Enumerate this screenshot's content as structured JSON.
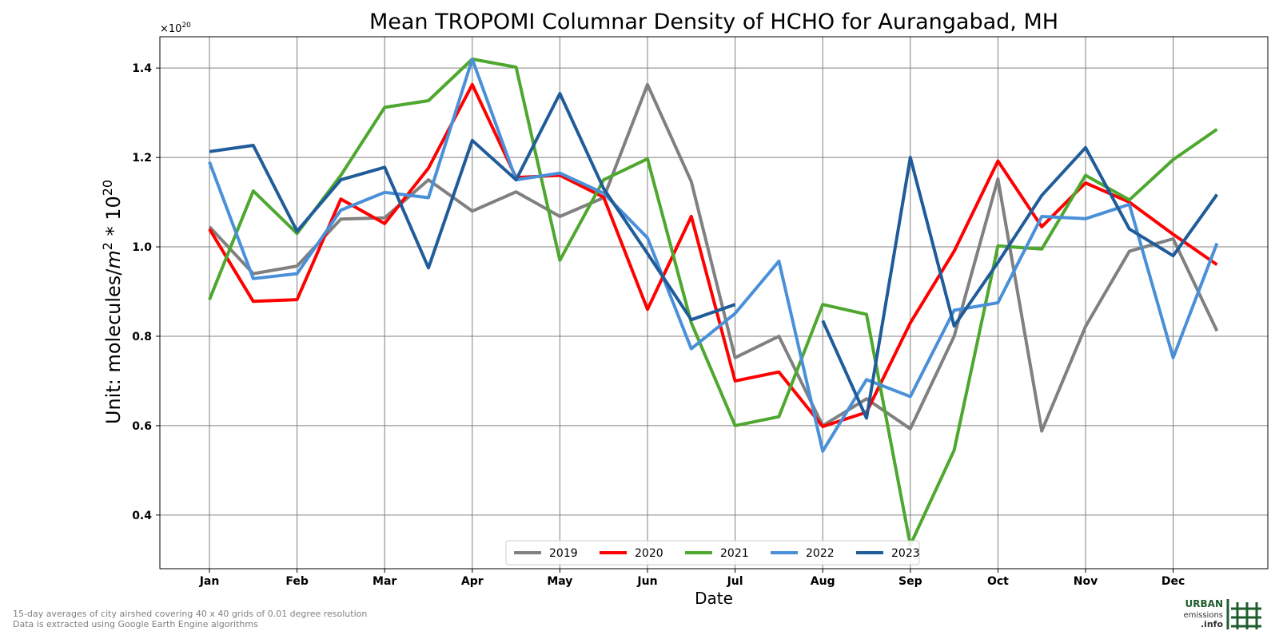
{
  "chart_data": {
    "type": "line",
    "title": "Mean TROPOMI Columnar Density of HCHO for Aurangabad, MH",
    "xlabel": "Date",
    "ylabel_text": "Unit: molecules/",
    "ylabel_m": "m",
    "ylabel_exp": "2",
    "ylabel_mid": " * 10",
    "ylabel_exp2": "20",
    "offset_base": "×10",
    "offset_exp": "20",
    "ylim": [
      0.28,
      1.47
    ],
    "yticks": [
      "0.4",
      "0.6",
      "0.8",
      "1.0",
      "1.2",
      "1.4"
    ],
    "xticks": [
      "Jan",
      "Feb",
      "Mar",
      "Apr",
      "May",
      "Jun",
      "Jul",
      "Aug",
      "Sep",
      "Oct",
      "Nov",
      "Dec"
    ],
    "x": [
      "Jan 1",
      "Jan 16",
      "Feb 1",
      "Feb 16",
      "Mar 1",
      "Mar 16",
      "Apr 1",
      "Apr 16",
      "May 1",
      "May 16",
      "Jun 1",
      "Jun 16",
      "Jul 1",
      "Jul 16",
      "Aug 1",
      "Aug 16",
      "Sep 1",
      "Sep 16",
      "Oct 1",
      "Oct 16",
      "Nov 1",
      "Nov 16",
      "Dec 1",
      "Dec 16"
    ],
    "grid": true,
    "legend_position": "bottom-center",
    "series": [
      {
        "name": "2019",
        "color": "#808080",
        "values": [
          1.045,
          0.94,
          0.957,
          1.062,
          1.065,
          1.15,
          1.08,
          1.123,
          1.068,
          1.11,
          1.363,
          1.146,
          0.752,
          0.8,
          0.6,
          0.66,
          0.593,
          0.8,
          1.152,
          0.588,
          0.822,
          0.99,
          1.018,
          0.812
        ]
      },
      {
        "name": "2020",
        "color": "#ff0000",
        "values": [
          1.04,
          0.878,
          0.882,
          1.107,
          1.052,
          1.176,
          1.363,
          1.155,
          1.16,
          1.111,
          0.86,
          1.068,
          0.7,
          0.72,
          0.598,
          0.63,
          0.83,
          0.99,
          1.192,
          1.045,
          1.143,
          1.1,
          1.028,
          0.96
        ]
      },
      {
        "name": "2021",
        "color": "#4ea72e",
        "values": [
          0.882,
          1.125,
          1.03,
          1.16,
          1.312,
          1.327,
          1.42,
          1.402,
          0.97,
          1.15,
          1.197,
          0.83,
          0.6,
          0.62,
          0.871,
          0.849,
          0.333,
          0.545,
          1.002,
          0.995,
          1.16,
          1.105,
          1.195,
          1.263
        ]
      },
      {
        "name": "2022",
        "color": "#4a90d9",
        "values": [
          1.19,
          0.929,
          0.94,
          1.082,
          1.122,
          1.11,
          1.42,
          1.15,
          1.165,
          1.12,
          1.02,
          0.772,
          0.851,
          0.968,
          0.543,
          0.703,
          0.665,
          0.858,
          0.875,
          1.068,
          1.063,
          1.095,
          0.752,
          1.008
        ]
      },
      {
        "name": "2023",
        "color": "#1f5c99",
        "values": [
          1.213,
          1.227,
          1.035,
          1.15,
          1.178,
          0.953,
          1.238,
          1.15,
          1.343,
          1.13,
          0.985,
          0.837,
          0.871,
          null,
          0.835,
          0.617,
          1.2,
          0.823,
          0.965,
          1.115,
          1.222,
          1.04,
          0.98,
          1.117
        ]
      }
    ]
  },
  "footnote": {
    "line1": "15-day averages of city airshed covering 40 x 40 grids of 0.01 degree resolution",
    "line2": "Data is extracted using Google Earth Engine algorithms"
  },
  "logo": {
    "line1": "URBAN",
    "line2": "emissions",
    "line3": ".info"
  }
}
